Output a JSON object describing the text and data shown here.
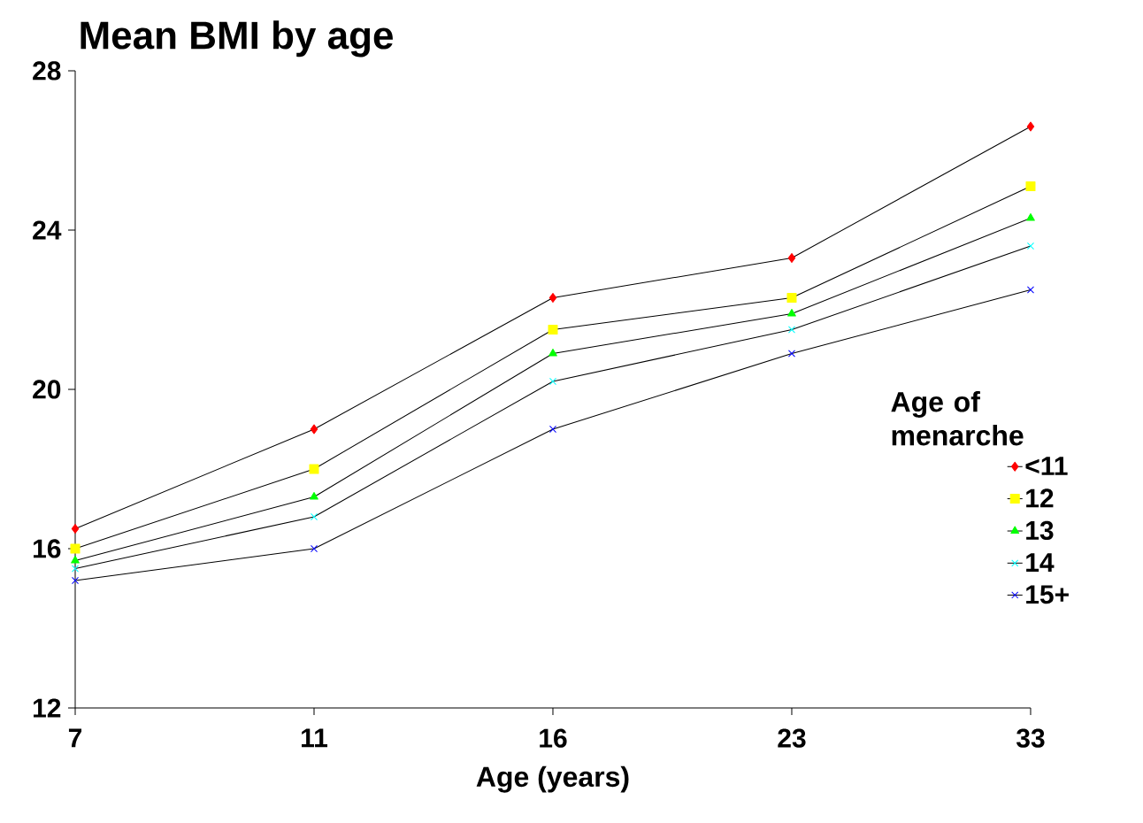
{
  "chart_data": {
    "type": "line",
    "title": "Mean BMI by age",
    "xlabel": "Age (years)",
    "legend_title": "Age of menarche",
    "categories": [
      "7",
      "11",
      "16",
      "23",
      "33"
    ],
    "ylim": [
      12,
      28
    ],
    "yticks": [
      12,
      16,
      20,
      24,
      28
    ],
    "grid": false,
    "legend": "right",
    "series": [
      {
        "name": "<11",
        "color": "#ff0000",
        "marker": "diamond",
        "values": [
          16.5,
          19.0,
          22.3,
          23.3,
          26.6
        ]
      },
      {
        "name": "12",
        "color": "#ffff00",
        "marker": "square",
        "values": [
          16.0,
          18.0,
          21.5,
          22.3,
          25.1
        ]
      },
      {
        "name": "13",
        "color": "#00ff00",
        "marker": "triangle",
        "values": [
          15.7,
          17.3,
          20.9,
          21.9,
          24.3
        ]
      },
      {
        "name": "14",
        "color": "#00ffff",
        "marker": "cross",
        "values": [
          15.5,
          16.8,
          20.2,
          21.5,
          23.6
        ]
      },
      {
        "name": "15+",
        "color": "#0000ff",
        "marker": "cross",
        "values": [
          15.2,
          16.0,
          19.0,
          20.9,
          22.5
        ]
      }
    ]
  }
}
